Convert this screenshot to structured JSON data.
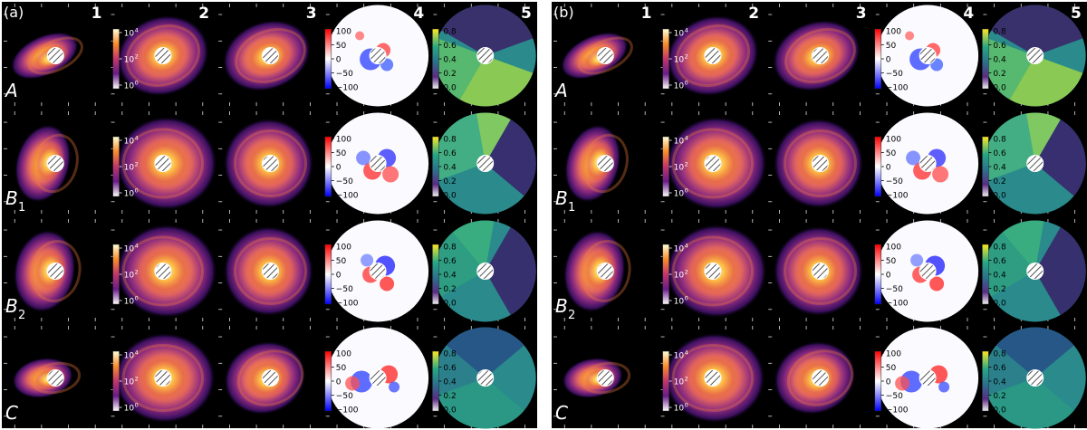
{
  "panels": [
    {
      "tag": "(a)",
      "columns": [
        "1",
        "2",
        "3",
        "4",
        "5"
      ]
    },
    {
      "tag": "(b)",
      "columns": [
        "1",
        "2",
        "3",
        "4",
        "5"
      ]
    }
  ],
  "rows": [
    {
      "main": "A",
      "sub": ""
    },
    {
      "main": "B",
      "sub": "1"
    },
    {
      "main": "B",
      "sub": "2"
    },
    {
      "main": "C",
      "sub": ""
    }
  ],
  "colorbars": {
    "flux": {
      "cmap": "inferno-like",
      "ticks": [
        "10",
        "10",
        "10"
      ],
      "exponents": [
        "4",
        "2",
        "0"
      ]
    },
    "residual": {
      "cmap": "bwr",
      "ticks": [
        "100",
        "50",
        "0",
        "−50",
        "−100"
      ]
    },
    "ratio": {
      "cmap": "viridis-like",
      "ticks": [
        "0.8",
        "0.6",
        "0.4",
        "0.2",
        "0.0"
      ]
    }
  },
  "colors": {
    "background": "#000000",
    "separator": "#ffffff",
    "label": "#ffffff",
    "cbar_tick_light": "#ffffff",
    "cbar_tick_dark": "#000000"
  }
}
